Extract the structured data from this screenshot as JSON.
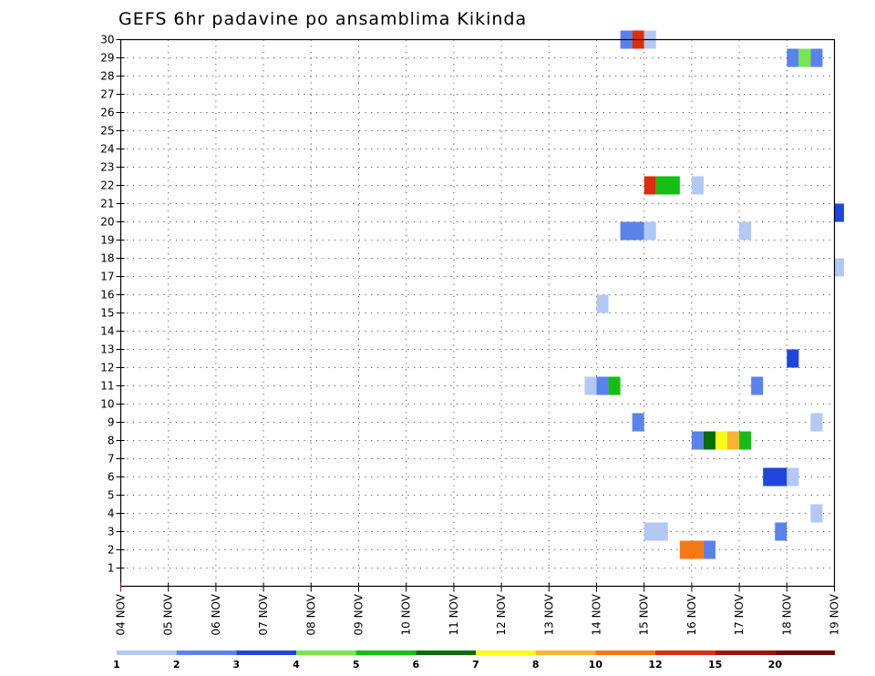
{
  "chart_data": {
    "type": "heatmap",
    "title": "GEFS 6hr padavine po ansamblima Kikinda",
    "x_tick_labels": [
      "04 NOV",
      "05 NOV",
      "06 NOV",
      "07 NOV",
      "08 NOV",
      "09 NOV",
      "10 NOV",
      "11 NOV",
      "12 NOV",
      "13 NOV",
      "14 NOV",
      "15 NOV",
      "16 NOV",
      "17 NOV",
      "18 NOV",
      "19 NOV"
    ],
    "x_range_days": [
      0,
      15
    ],
    "y_tick_labels": [
      "1",
      "2",
      "3",
      "4",
      "5",
      "6",
      "7",
      "8",
      "9",
      "10",
      "11",
      "12",
      "13",
      "14",
      "15",
      "16",
      "17",
      "18",
      "19",
      "20",
      "21",
      "22",
      "23",
      "24",
      "25",
      "26",
      "27",
      "28",
      "29",
      "30"
    ],
    "y_range": [
      0,
      30
    ],
    "grid": true,
    "colorbar": {
      "position": "bottom",
      "bounds": [
        1,
        2,
        3,
        4,
        5,
        6,
        7,
        8,
        10,
        12,
        15,
        20,
        25
      ],
      "labels": [
        "1",
        "2",
        "3",
        "4",
        "5",
        "6",
        "7",
        "8",
        "10",
        "12",
        "15",
        "20"
      ],
      "colors": [
        "#b4c8f5",
        "#5a82eb",
        "#1e46dc",
        "#78e650",
        "#14be14",
        "#056e05",
        "#fafa14",
        "#fab432",
        "#f57814",
        "#dc2d0f",
        "#a0140a",
        "#6e0a05"
      ]
    },
    "cells": [
      {
        "member": 30,
        "start_day": 10.5,
        "end_day": 10.75,
        "level": 1
      },
      {
        "member": 30,
        "start_day": 10.75,
        "end_day": 11.0,
        "level": 9
      },
      {
        "member": 30,
        "start_day": 11.0,
        "end_day": 11.25,
        "level": 0
      },
      {
        "member": 29,
        "start_day": 14.0,
        "end_day": 14.25,
        "level": 1
      },
      {
        "member": 29,
        "start_day": 14.25,
        "end_day": 14.5,
        "level": 3
      },
      {
        "member": 29,
        "start_day": 14.5,
        "end_day": 14.75,
        "level": 1
      },
      {
        "member": 22,
        "start_day": 11.0,
        "end_day": 11.25,
        "level": 9
      },
      {
        "member": 22,
        "start_day": 11.25,
        "end_day": 11.75,
        "level": 4
      },
      {
        "member": 22,
        "start_day": 12.0,
        "end_day": 12.25,
        "level": 0
      },
      {
        "member": 20.5,
        "start_day": 15.0,
        "end_day": 15.2,
        "level": 2
      },
      {
        "member": 19.5,
        "start_day": 10.5,
        "end_day": 11.0,
        "level": 1
      },
      {
        "member": 19.5,
        "start_day": 11.0,
        "end_day": 11.25,
        "level": 0
      },
      {
        "member": 19.5,
        "start_day": 13.0,
        "end_day": 13.25,
        "level": 0
      },
      {
        "member": 17.5,
        "start_day": 15.0,
        "end_day": 15.2,
        "level": 0
      },
      {
        "member": 15.5,
        "start_day": 10.0,
        "end_day": 10.25,
        "level": 0
      },
      {
        "member": 12.5,
        "start_day": 14.0,
        "end_day": 14.25,
        "level": 2
      },
      {
        "member": 11,
        "start_day": 9.75,
        "end_day": 10.0,
        "level": 0
      },
      {
        "member": 11,
        "start_day": 10.0,
        "end_day": 10.25,
        "level": 1
      },
      {
        "member": 11,
        "start_day": 10.25,
        "end_day": 10.5,
        "level": 4
      },
      {
        "member": 11,
        "start_day": 13.25,
        "end_day": 13.5,
        "level": 1
      },
      {
        "member": 9,
        "start_day": 10.75,
        "end_day": 11.0,
        "level": 1
      },
      {
        "member": 9,
        "start_day": 14.5,
        "end_day": 14.75,
        "level": 0
      },
      {
        "member": 8,
        "start_day": 12.0,
        "end_day": 12.25,
        "level": 1
      },
      {
        "member": 8,
        "start_day": 12.25,
        "end_day": 12.5,
        "level": 5
      },
      {
        "member": 8,
        "start_day": 12.5,
        "end_day": 12.75,
        "level": 6
      },
      {
        "member": 8,
        "start_day": 12.75,
        "end_day": 13.0,
        "level": 7
      },
      {
        "member": 8,
        "start_day": 13.0,
        "end_day": 13.25,
        "level": 4
      },
      {
        "member": 6,
        "start_day": 13.5,
        "end_day": 14.0,
        "level": 2
      },
      {
        "member": 6,
        "start_day": 14.0,
        "end_day": 14.25,
        "level": 0
      },
      {
        "member": 4,
        "start_day": 14.5,
        "end_day": 14.75,
        "level": 0
      },
      {
        "member": 3,
        "start_day": 11.0,
        "end_day": 11.5,
        "level": 0
      },
      {
        "member": 3,
        "start_day": 13.75,
        "end_day": 14.0,
        "level": 1
      },
      {
        "member": 2,
        "start_day": 11.75,
        "end_day": 12.25,
        "level": 8
      },
      {
        "member": 2,
        "start_day": 12.25,
        "end_day": 12.5,
        "level": 1
      }
    ]
  }
}
